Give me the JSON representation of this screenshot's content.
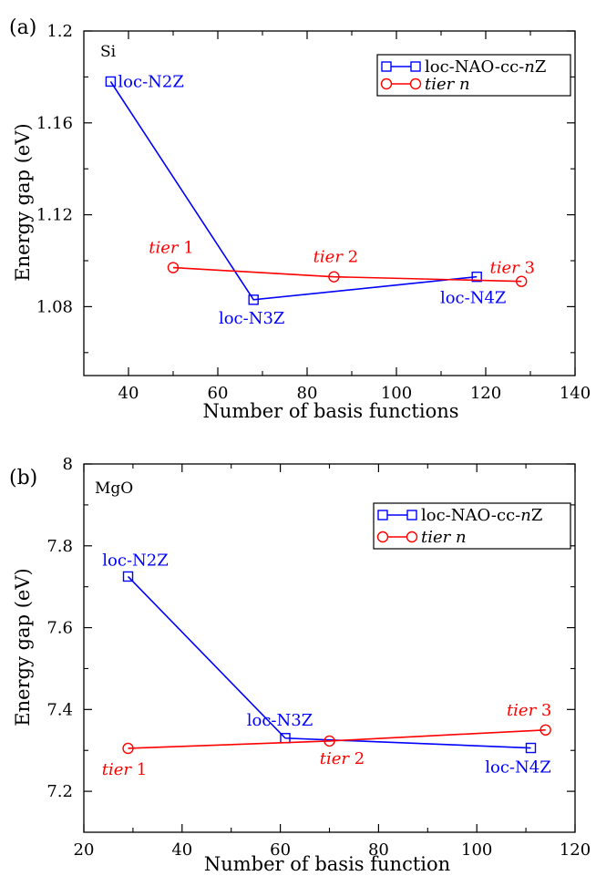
{
  "chart_data": [
    {
      "type": "line",
      "panel_label": "(a)",
      "material": "Si",
      "xlabel": "Number of basis functions",
      "ylabel": "Energy gap (eV)",
      "xlim": [
        30,
        140
      ],
      "ylim": [
        1.05,
        1.2
      ],
      "xticks": [
        40,
        60,
        80,
        100,
        120,
        140
      ],
      "yticks": [
        1.08,
        1.12,
        1.16,
        1.2
      ],
      "ytick_labels": [
        "1.08",
        "1.12",
        "1.16",
        "1.2"
      ],
      "legend": "top-right",
      "series": [
        {
          "name": "loc-NAO-cc-nZ",
          "name_parts": [
            {
              "text": "loc-NAO-cc-",
              "italic": false
            },
            {
              "text": "n",
              "italic": true
            },
            {
              "text": "Z",
              "italic": false
            }
          ],
          "color": "#0000ff",
          "marker": "square",
          "x": [
            36,
            68,
            118
          ],
          "y": [
            1.178,
            1.083,
            1.093
          ],
          "point_labels": [
            {
              "parts": [
                {
                  "text": "loc-N2Z",
                  "italic": false
                }
              ]
            },
            {
              "parts": [
                {
                  "text": "loc-N3Z",
                  "italic": false
                }
              ]
            },
            {
              "parts": [
                {
                  "text": "loc-N4Z",
                  "italic": false
                }
              ]
            }
          ]
        },
        {
          "name": "tier n",
          "name_parts": [
            {
              "text": "tier n",
              "italic": true
            }
          ],
          "color": "#ff0000",
          "marker": "circle",
          "x": [
            50,
            86,
            128
          ],
          "y": [
            1.097,
            1.093,
            1.091
          ],
          "point_labels": [
            {
              "parts": [
                {
                  "text": "tier",
                  "italic": true
                },
                {
                  "text": " 1",
                  "italic": false
                }
              ]
            },
            {
              "parts": [
                {
                  "text": "tier",
                  "italic": true
                },
                {
                  "text": " 2",
                  "italic": false
                }
              ]
            },
            {
              "parts": [
                {
                  "text": "tier",
                  "italic": true
                },
                {
                  "text": " 3",
                  "italic": false
                }
              ]
            }
          ]
        }
      ]
    },
    {
      "type": "line",
      "panel_label": "(b)",
      "material": "MgO",
      "xlabel": "Number of basis function",
      "ylabel": "Energy gap (eV)",
      "xlim": [
        20,
        120
      ],
      "ylim": [
        7.1,
        8.0
      ],
      "xticks": [
        20,
        40,
        60,
        80,
        100,
        120
      ],
      "yticks": [
        7.2,
        7.4,
        7.6,
        7.8,
        8.0
      ],
      "ytick_labels": [
        "7.2",
        "7.4",
        "7.6",
        "7.8",
        "8"
      ],
      "legend": "top-right",
      "series": [
        {
          "name": "loc-NAO-cc-nZ",
          "name_parts": [
            {
              "text": "loc-NAO-cc-",
              "italic": false
            },
            {
              "text": "n",
              "italic": true
            },
            {
              "text": "Z",
              "italic": false
            }
          ],
          "color": "#0000ff",
          "marker": "square",
          "x": [
            29,
            61,
            111
          ],
          "y": [
            7.725,
            7.33,
            7.306
          ],
          "point_labels": [
            {
              "parts": [
                {
                  "text": "loc-N2Z",
                  "italic": false
                }
              ]
            },
            {
              "parts": [
                {
                  "text": "loc-N3Z",
                  "italic": false
                }
              ]
            },
            {
              "parts": [
                {
                  "text": "loc-N4Z",
                  "italic": false
                }
              ]
            }
          ]
        },
        {
          "name": "tier n",
          "name_parts": [
            {
              "text": "tier n",
              "italic": true
            }
          ],
          "color": "#ff0000",
          "marker": "circle",
          "x": [
            29,
            70,
            114
          ],
          "y": [
            7.305,
            7.323,
            7.35
          ],
          "point_labels": [
            {
              "parts": [
                {
                  "text": "tier",
                  "italic": true
                },
                {
                  "text": " 1",
                  "italic": false
                }
              ]
            },
            {
              "parts": [
                {
                  "text": "tier",
                  "italic": true
                },
                {
                  "text": " 2",
                  "italic": false
                }
              ]
            },
            {
              "parts": [
                {
                  "text": "tier",
                  "italic": true
                },
                {
                  "text": " 3",
                  "italic": false
                }
              ]
            }
          ]
        }
      ]
    }
  ]
}
